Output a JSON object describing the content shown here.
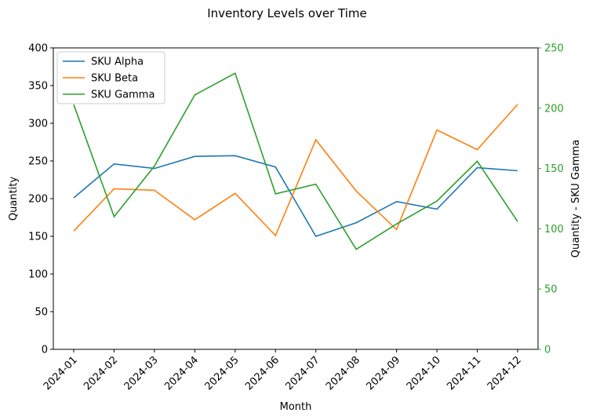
{
  "chart_data": {
    "type": "line",
    "title": "Inventory Levels over Time",
    "xlabel": "Month",
    "ylabel": "Quantity",
    "ylabel_right": "Quantity - SKU Gamma",
    "categories": [
      "2024-01",
      "2024-02",
      "2024-03",
      "2024-04",
      "2024-05",
      "2024-06",
      "2024-07",
      "2024-08",
      "2024-09",
      "2024-10",
      "2024-11",
      "2024-12"
    ],
    "ylim": [
      0,
      400
    ],
    "yticks": [
      "0",
      "50",
      "100",
      "150",
      "200",
      "250",
      "300",
      "350",
      "400"
    ],
    "ylim_right": [
      0,
      250
    ],
    "yticks_right": [
      "0",
      "50",
      "100",
      "150",
      "200",
      "250"
    ],
    "right_axis_color": "#2ca02c",
    "legend_position": "top-left",
    "grid": false,
    "series": [
      {
        "name": "SKU Alpha",
        "axis": "left",
        "color": "#1f77b4",
        "values": [
          201,
          246,
          240,
          256,
          257,
          242,
          150,
          168,
          196,
          186,
          241,
          237
        ]
      },
      {
        "name": "SKU Beta",
        "axis": "left",
        "color": "#ff7f0e",
        "values": [
          157,
          213,
          211,
          172,
          207,
          151,
          278,
          210,
          159,
          291,
          265,
          325
        ]
      },
      {
        "name": "SKU Gamma",
        "axis": "right",
        "color": "#2ca02c",
        "values": [
          203,
          110,
          152,
          211,
          229,
          129,
          137,
          83,
          104,
          123,
          156,
          106
        ]
      }
    ]
  }
}
